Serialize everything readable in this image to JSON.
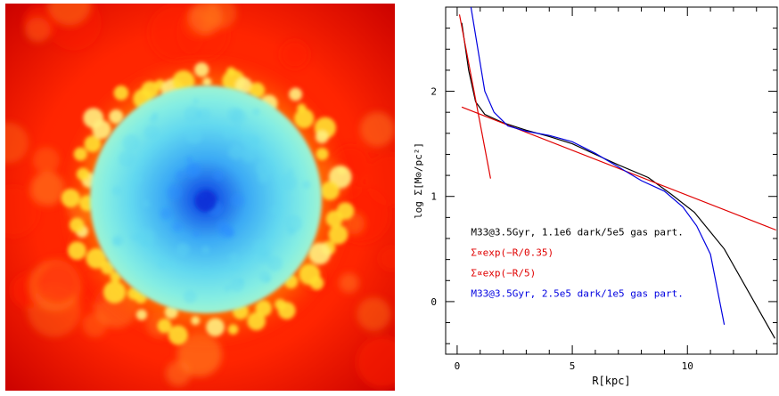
{
  "figure": {
    "map_panel": {
      "colormap": [
        "#1030d8",
        "#2a8cff",
        "#5fd8f0",
        "#8ff0e0",
        "#ffe030",
        "#ff8020",
        "#ff2000",
        "#d80000"
      ]
    }
  },
  "chart_data": {
    "type": "line",
    "title": "",
    "xlabel": "R[kpc]",
    "ylabel": "log Σ[M⊙/pc²]",
    "xlim": [
      -0.5,
      13.9
    ],
    "ylim": [
      -0.5,
      2.8
    ],
    "xticks": [
      0,
      5,
      10
    ],
    "yticks": [
      0,
      1,
      2
    ],
    "xtick_labels": [
      "0",
      "5",
      "10"
    ],
    "ytick_labels": [
      "0",
      "1",
      "2"
    ],
    "grid": false,
    "legend_position": "lower-left, inside plot",
    "series": [
      {
        "name": "M33@3.5Gyr, 1.1e6 dark/5e5 gas part.",
        "color": "#000000",
        "x": [
          0.2,
          0.5,
          0.8,
          1.2,
          2.0,
          3.0,
          4.0,
          5.0,
          6.0,
          7.0,
          8.3,
          9.3,
          10.3,
          11.6,
          13.8
        ],
        "y": [
          2.65,
          2.2,
          1.9,
          1.78,
          1.7,
          1.63,
          1.57,
          1.5,
          1.4,
          1.3,
          1.18,
          1.02,
          0.85,
          0.5,
          -0.35
        ]
      },
      {
        "name": "Σ∝exp(−R/0.35)",
        "color": "#e00000",
        "x": [
          0.1,
          1.45
        ],
        "y": [
          2.73,
          1.17
        ]
      },
      {
        "name": "Σ∝exp(−R/5)",
        "color": "#e00000",
        "x": [
          0.2,
          13.85
        ],
        "y": [
          1.85,
          0.68
        ]
      },
      {
        "name": "M33@3.5Gyr, 2.5e5 dark/1e5 gas part.",
        "color": "#0000e0",
        "x": [
          0.6,
          1.2,
          1.6,
          2.2,
          3.0,
          4.0,
          5.0,
          6.0,
          7.0,
          8.0,
          9.0,
          9.8,
          10.4,
          11.0,
          11.6
        ],
        "y": [
          2.8,
          2.0,
          1.8,
          1.67,
          1.62,
          1.58,
          1.52,
          1.41,
          1.28,
          1.15,
          1.05,
          0.9,
          0.72,
          0.45,
          -0.22
        ]
      }
    ]
  }
}
